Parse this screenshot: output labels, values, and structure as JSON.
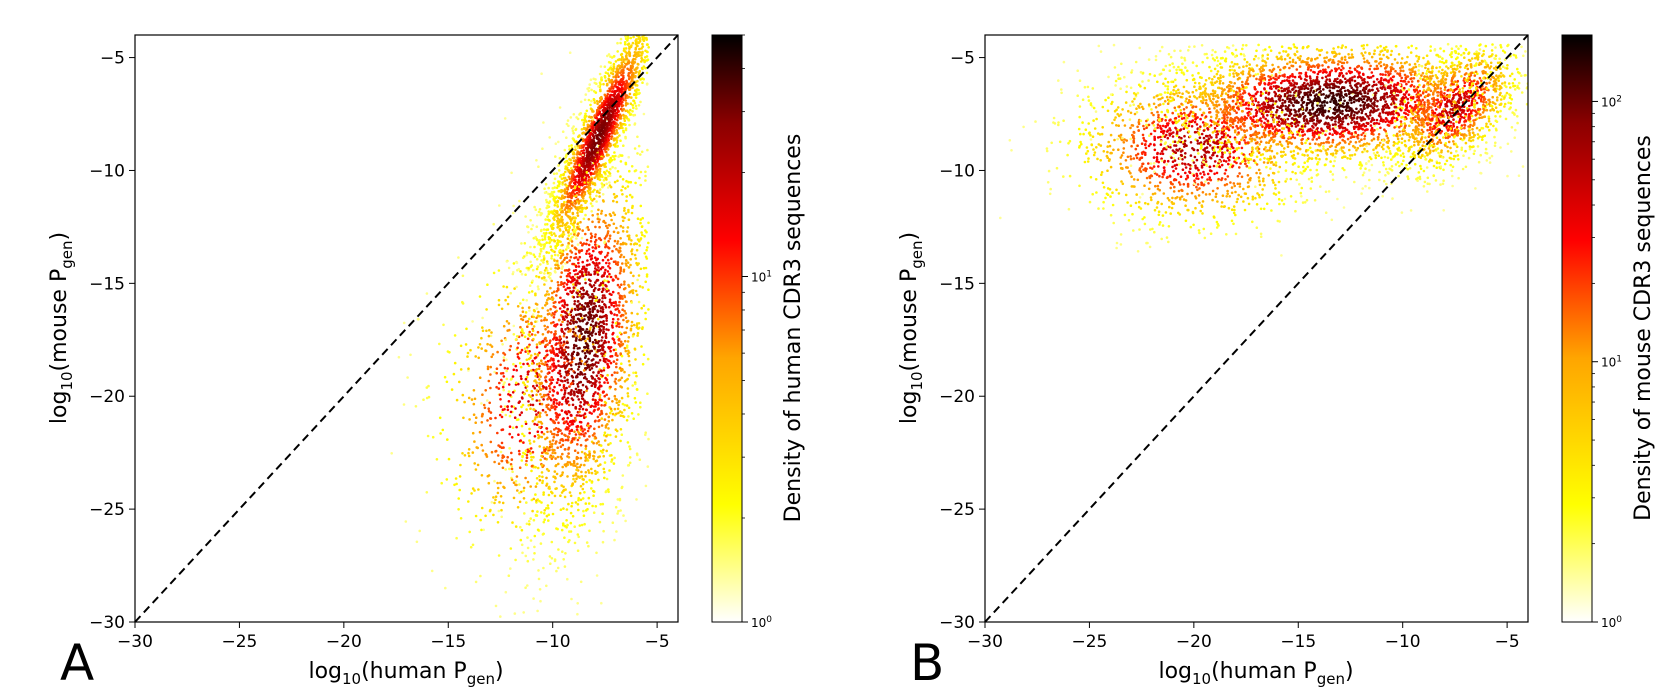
{
  "figure": {
    "colormap": [
      "#ffffff",
      "#ffff00",
      "#ffa500",
      "#ff0000",
      "#8b0000",
      "#000000"
    ]
  },
  "chart_data": [
    {
      "type": "scatter",
      "panel_label": "A",
      "title": "",
      "xlabel": "log10(human Pgen)",
      "ylabel": "log10(mouse Pgen)",
      "xlabel_parts": {
        "prefix": "log",
        "base": "10",
        "middle": "(human P",
        "sub": "gen",
        "suffix": ")"
      },
      "ylabel_parts": {
        "prefix": "log",
        "base": "10",
        "middle": "(mouse P",
        "sub": "gen",
        "suffix": ")"
      },
      "xlim": [
        -30,
        -4
      ],
      "ylim": [
        -30,
        -4
      ],
      "xticks": [
        -30,
        -25,
        -20,
        -15,
        -10,
        -5
      ],
      "yticks": [
        -30,
        -25,
        -20,
        -15,
        -10,
        -5
      ],
      "xtick_labels": [
        "−30",
        "−25",
        "−20",
        "−15",
        "−10",
        "−5"
      ],
      "ytick_labels": [
        "−30",
        "−25",
        "−20",
        "−15",
        "−10",
        "−5"
      ],
      "reference_line": {
        "style": "dashed",
        "color": "#000000",
        "from": [
          -30,
          -30
        ],
        "to": [
          -4,
          -4
        ]
      },
      "density_clusters": [
        {
          "cx": -7.8,
          "cy": -8.5,
          "sx": 1.3,
          "sy": 2.6,
          "rho": 0.9,
          "weight": 0.4
        },
        {
          "cx": -8.5,
          "cy": -17.5,
          "sx": 1.6,
          "sy": 4.2,
          "rho": 0.3,
          "weight": 0.45
        },
        {
          "cx": -11.0,
          "cy": -20.0,
          "sx": 2.4,
          "sy": 3.5,
          "rho": 0.2,
          "weight": 0.15
        }
      ],
      "x_clip": [
        -20,
        -5.4
      ],
      "colorbar": {
        "label": "Density of human CDR3 sequences",
        "scale": "log",
        "range": [
          1,
          50
        ],
        "ticks": [
          {
            "value": 1,
            "base": "10",
            "exp": "0"
          },
          {
            "value": 10,
            "base": "10",
            "exp": "1"
          }
        ]
      }
    },
    {
      "type": "scatter",
      "panel_label": "B",
      "title": "",
      "xlabel": "log10(human Pgen)",
      "ylabel": "log10(mouse Pgen)",
      "xlabel_parts": {
        "prefix": "log",
        "base": "10",
        "middle": "(human P",
        "sub": "gen",
        "suffix": ")"
      },
      "ylabel_parts": {
        "prefix": "log",
        "base": "10",
        "middle": "(mouse P",
        "sub": "gen",
        "suffix": ")"
      },
      "xlim": [
        -30,
        -4
      ],
      "ylim": [
        -30,
        -4
      ],
      "xticks": [
        -30,
        -25,
        -20,
        -15,
        -10,
        -5
      ],
      "yticks": [
        -30,
        -25,
        -20,
        -15,
        -10,
        -5
      ],
      "xtick_labels": [
        "−30",
        "−25",
        "−20",
        "−15",
        "−10",
        "−5"
      ],
      "ytick_labels": [
        "−30",
        "−25",
        "−20",
        "−15",
        "−10",
        "−5"
      ],
      "reference_line": {
        "style": "dashed",
        "color": "#000000",
        "from": [
          -30,
          -30
        ],
        "to": [
          -4,
          -4
        ]
      },
      "density_clusters": [
        {
          "cx": -13.5,
          "cy": -7.0,
          "sx": 4.0,
          "sy": 1.4,
          "rho": 0.1,
          "weight": 0.55
        },
        {
          "cx": -7.5,
          "cy": -7.2,
          "sx": 1.6,
          "sy": 1.5,
          "rho": 0.5,
          "weight": 0.2
        },
        {
          "cx": -20.0,
          "cy": -9.0,
          "sx": 3.0,
          "sy": 1.8,
          "rho": 0.0,
          "weight": 0.25
        }
      ],
      "y_clip": [
        -14,
        -4.4
      ],
      "colorbar": {
        "label": "Density of mouse CDR3 sequences",
        "scale": "log",
        "range": [
          1,
          180
        ],
        "ticks": [
          {
            "value": 1,
            "base": "10",
            "exp": "0"
          },
          {
            "value": 10,
            "base": "10",
            "exp": "1"
          },
          {
            "value": 100,
            "base": "10",
            "exp": "2"
          }
        ]
      }
    }
  ]
}
